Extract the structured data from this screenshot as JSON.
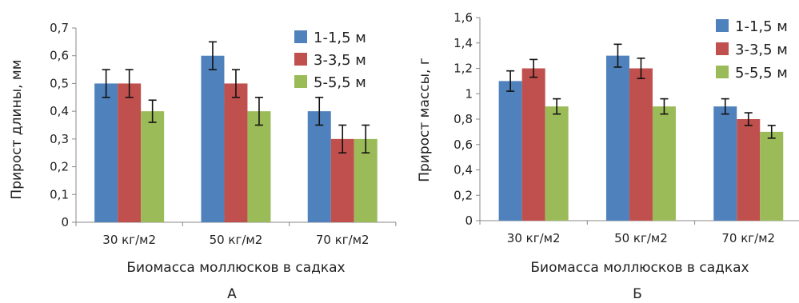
{
  "chart_data": [
    {
      "type": "bar",
      "panel_label": "А",
      "xlabel": "Биомасса моллюсков в садках",
      "ylabel": "Прирост длины, мм",
      "categories": [
        "30 кг/м2",
        "50 кг/м2",
        "70 кг/м2"
      ],
      "ylim": [
        0,
        0.7
      ],
      "yticks": [
        "0",
        "0,1",
        "0,2",
        "0,3",
        "0,4",
        "0,5",
        "0,6",
        "0,7"
      ],
      "grid": false,
      "legend_position": "top-right",
      "series": [
        {
          "name": "1-1,5 м",
          "color": "#4f81bd",
          "values": [
            0.5,
            0.6,
            0.4
          ],
          "errors": [
            0.05,
            0.05,
            0.05
          ]
        },
        {
          "name": "3-3,5 м",
          "color": "#c0504d",
          "values": [
            0.5,
            0.5,
            0.3
          ],
          "errors": [
            0.05,
            0.05,
            0.05
          ]
        },
        {
          "name": "5-5,5 м",
          "color": "#9bbb59",
          "values": [
            0.4,
            0.4,
            0.3
          ],
          "errors": [
            0.04,
            0.05,
            0.05
          ]
        }
      ]
    },
    {
      "type": "bar",
      "panel_label": "Б",
      "xlabel": "Биомасса моллюсков в садках",
      "ylabel": "Прирост массы, г",
      "categories": [
        "30 кг/м2",
        "50 кг/м2",
        "70 кг/м2"
      ],
      "ylim": [
        0,
        1.6
      ],
      "yticks": [
        "0",
        "0,2",
        "0,4",
        "0,6",
        "0,8",
        "1",
        "1,2",
        "1,4",
        "1,6"
      ],
      "grid": false,
      "legend_position": "top-right",
      "series": [
        {
          "name": "1-1,5 м",
          "color": "#4f81bd",
          "values": [
            1.1,
            1.3,
            0.9
          ],
          "errors": [
            0.08,
            0.09,
            0.06
          ]
        },
        {
          "name": "3-3,5 м",
          "color": "#c0504d",
          "values": [
            1.2,
            1.2,
            0.8
          ],
          "errors": [
            0.07,
            0.08,
            0.05
          ]
        },
        {
          "name": "5-5,5 м",
          "color": "#9bbb59",
          "values": [
            0.9,
            0.9,
            0.7
          ],
          "errors": [
            0.06,
            0.06,
            0.05
          ]
        }
      ]
    }
  ]
}
